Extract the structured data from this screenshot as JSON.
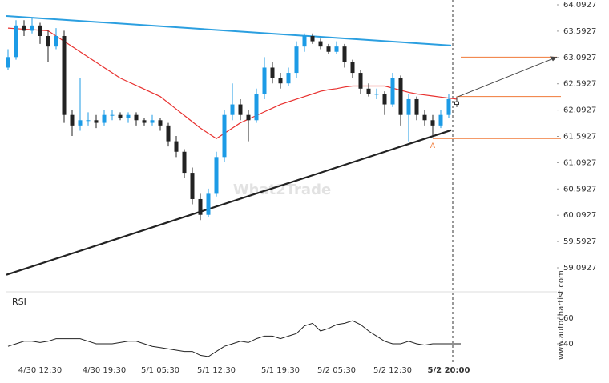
{
  "chart_data": {
    "type": "candlestick",
    "categories": [
      null,
      null,
      null,
      null,
      "4/30 12:30",
      null,
      null,
      null,
      null,
      null,
      null,
      null,
      "4/30 19:30",
      null,
      null,
      null,
      null,
      null,
      null,
      "5/1 05:30",
      null,
      null,
      null,
      null,
      null,
      null,
      "5/1 12:30",
      null,
      null,
      null,
      null,
      null,
      null,
      null,
      "5/1 19:30",
      null,
      null,
      null,
      null,
      null,
      null,
      "5/2 05:30",
      null,
      null,
      null,
      null,
      null,
      null,
      "5/2 12:30",
      null,
      null,
      null,
      null,
      null,
      null,
      "5/2 20:00",
      null
    ],
    "ohlc": [
      [
        62.9,
        63.25,
        62.85,
        63.1
      ],
      [
        63.1,
        63.8,
        63.05,
        63.7
      ],
      [
        63.7,
        63.8,
        63.5,
        63.6
      ],
      [
        63.6,
        63.85,
        63.55,
        63.7
      ],
      [
        63.7,
        63.75,
        63.35,
        63.5
      ],
      [
        63.5,
        63.6,
        63.0,
        63.3
      ],
      [
        63.3,
        63.65,
        63.25,
        63.5
      ],
      [
        63.5,
        63.6,
        61.85,
        62.0
      ],
      [
        62.0,
        62.1,
        61.6,
        61.8
      ],
      [
        61.8,
        62.7,
        61.7,
        61.9
      ],
      [
        61.9,
        62.05,
        61.8,
        61.9
      ],
      [
        61.9,
        62.0,
        61.75,
        61.85
      ],
      [
        61.85,
        62.1,
        61.8,
        62.0
      ],
      [
        62.0,
        62.1,
        61.9,
        62.0
      ],
      [
        62.0,
        62.05,
        61.9,
        61.95
      ],
      [
        61.95,
        62.05,
        61.85,
        62.0
      ],
      [
        62.0,
        62.05,
        61.8,
        61.9
      ],
      [
        61.9,
        61.95,
        61.8,
        61.85
      ],
      [
        61.85,
        62.0,
        61.8,
        61.9
      ],
      [
        61.9,
        61.95,
        61.7,
        61.8
      ],
      [
        61.8,
        61.85,
        61.4,
        61.5
      ],
      [
        61.5,
        61.6,
        61.2,
        61.3
      ],
      [
        61.3,
        61.35,
        60.8,
        60.9
      ],
      [
        60.9,
        61.0,
        60.3,
        60.4
      ],
      [
        60.4,
        60.5,
        60.0,
        60.1
      ],
      [
        60.1,
        60.6,
        60.05,
        60.5
      ],
      [
        60.5,
        61.3,
        60.45,
        61.2
      ],
      [
        61.2,
        62.1,
        61.1,
        62.0
      ],
      [
        62.0,
        62.6,
        61.9,
        62.2
      ],
      [
        62.2,
        62.3,
        61.9,
        62.0
      ],
      [
        62.0,
        62.1,
        61.5,
        61.9
      ],
      [
        61.9,
        62.5,
        61.85,
        62.4
      ],
      [
        62.4,
        63.1,
        62.3,
        62.9
      ],
      [
        62.9,
        63.0,
        62.6,
        62.7
      ],
      [
        62.7,
        62.8,
        62.5,
        62.6
      ],
      [
        62.6,
        62.9,
        62.55,
        62.8
      ],
      [
        62.8,
        63.4,
        62.7,
        63.3
      ],
      [
        63.3,
        63.55,
        63.2,
        63.5
      ],
      [
        63.5,
        63.55,
        63.35,
        63.4
      ],
      [
        63.4,
        63.45,
        63.25,
        63.3
      ],
      [
        63.3,
        63.35,
        63.15,
        63.2
      ],
      [
        63.2,
        63.4,
        63.15,
        63.3
      ],
      [
        63.3,
        63.35,
        62.9,
        63.0
      ],
      [
        63.0,
        63.05,
        62.7,
        62.8
      ],
      [
        62.8,
        62.85,
        62.4,
        62.5
      ],
      [
        62.5,
        62.6,
        62.35,
        62.4
      ],
      [
        62.4,
        62.5,
        62.3,
        62.4
      ],
      [
        62.4,
        62.45,
        62.0,
        62.2
      ],
      [
        62.2,
        62.8,
        62.15,
        62.7
      ],
      [
        62.7,
        62.75,
        61.8,
        62.0
      ],
      [
        62.0,
        62.4,
        61.5,
        62.3
      ],
      [
        62.3,
        62.35,
        61.9,
        62.0
      ],
      [
        62.0,
        62.1,
        61.8,
        61.9
      ],
      [
        61.9,
        62.0,
        61.6,
        61.8
      ],
      [
        61.8,
        62.1,
        61.75,
        62.0
      ],
      [
        62.0,
        62.4,
        61.95,
        62.3
      ],
      [
        62.2,
        62.35,
        62.15,
        62.25
      ]
    ],
    "up_color": "#1c9be6",
    "down_color": "#222222",
    "current_color": "#ffffff",
    "ma": {
      "color": "#e8312f",
      "values": [
        63.65,
        63.64,
        63.63,
        63.62,
        63.61,
        63.6,
        63.5,
        63.4,
        63.3,
        63.2,
        63.1,
        63.0,
        62.9,
        62.8,
        62.7,
        62.63,
        62.56,
        62.49,
        62.42,
        62.35,
        62.23,
        62.11,
        61.99,
        61.87,
        61.75,
        61.65,
        61.55,
        61.65,
        61.75,
        61.85,
        61.92,
        61.99,
        62.06,
        62.13,
        62.2,
        62.25,
        62.3,
        62.35,
        62.4,
        62.45,
        62.48,
        62.5,
        62.53,
        62.55,
        62.55,
        62.55,
        62.55,
        62.55,
        62.51,
        62.47,
        62.43,
        62.4,
        62.38,
        62.36,
        62.34,
        62.32,
        62.3
      ]
    },
    "resistance": {
      "color": "#2b9fe0",
      "from_index": 0,
      "from": 63.88,
      "to_index": 55,
      "to": 63.32
    },
    "support": {
      "color": "#222222",
      "from_index": 0,
      "from": 58.96,
      "to_index": 55,
      "to": 61.71
    },
    "levels": {
      "color": "#f07a38",
      "current": 62.35,
      "target": 63.1,
      "pivot": 61.55,
      "pivot_label": "A"
    },
    "ylim": [
      58.75,
      64.15
    ],
    "yticks": [
      64.0927,
      63.5927,
      63.0927,
      62.5927,
      62.0927,
      61.5927,
      61.0927,
      60.5927,
      60.0927,
      59.5927,
      59.0927
    ],
    "rsi": {
      "title": "RSI",
      "color": "#222222",
      "ylim": [
        25,
        70
      ],
      "yticks": [
        60,
        40
      ],
      "values": [
        38,
        40,
        42,
        42,
        41,
        42,
        44,
        44,
        44,
        44,
        42,
        40,
        40,
        40,
        41,
        42,
        42,
        40,
        38,
        37,
        36,
        35,
        34,
        34,
        31,
        30,
        34,
        38,
        40,
        42,
        41,
        44,
        46,
        46,
        44,
        46,
        48,
        54,
        56,
        50,
        52,
        55,
        56,
        58,
        55,
        50,
        46,
        42,
        40,
        40,
        42,
        40,
        39,
        40,
        40,
        40,
        40
      ]
    },
    "watermark": "What2Trade",
    "credit": "www.autochartist.com"
  }
}
